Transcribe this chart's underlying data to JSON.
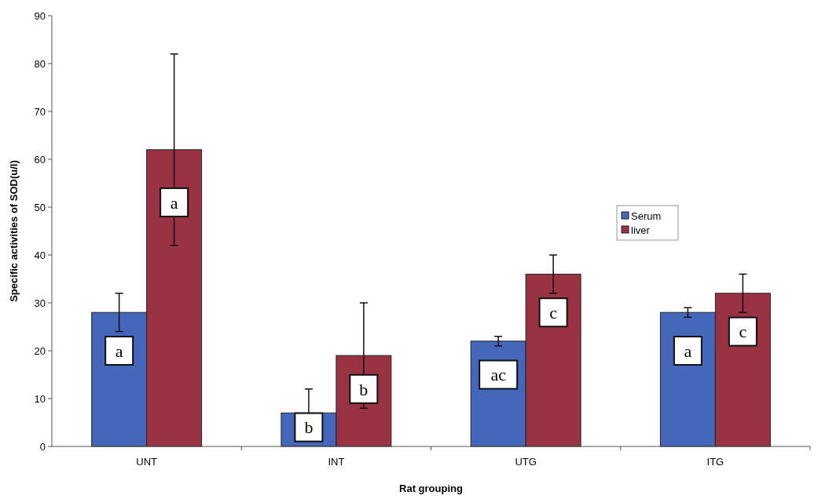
{
  "chart_data": {
    "type": "bar",
    "xlabel": "Rat grouping",
    "ylabel": "Specific activities of SOD(u/l)",
    "categories": [
      "UNT",
      "INT",
      "UTG",
      "ITG"
    ],
    "series": [
      {
        "name": "Serum",
        "color": "#4466bb",
        "values": [
          28,
          7,
          22,
          28
        ],
        "errors": [
          4,
          5,
          1,
          1
        ]
      },
      {
        "name": "liver",
        "color": "#993344",
        "values": [
          62,
          19,
          36,
          32
        ],
        "errors": [
          20,
          11,
          4,
          4
        ]
      }
    ],
    "ylim": [
      0,
      90
    ],
    "yticks": [
      0,
      10,
      20,
      30,
      40,
      50,
      60,
      70,
      80,
      90
    ],
    "legend": "right",
    "annotations": [
      {
        "text": "a",
        "x": "UNT",
        "y": 20
      },
      {
        "text": "a",
        "x": "UNT",
        "y": 51
      },
      {
        "text": "b",
        "x": "INT",
        "y": 4
      },
      {
        "text": "b",
        "x": "INT",
        "y": 12
      },
      {
        "text": "ac",
        "x": "UTG",
        "y": 15
      },
      {
        "text": "c",
        "x": "UTG",
        "y": 28
      },
      {
        "text": "a",
        "x": "ITG",
        "y": 20
      },
      {
        "text": "c",
        "x": "ITG",
        "y": 24
      }
    ]
  }
}
